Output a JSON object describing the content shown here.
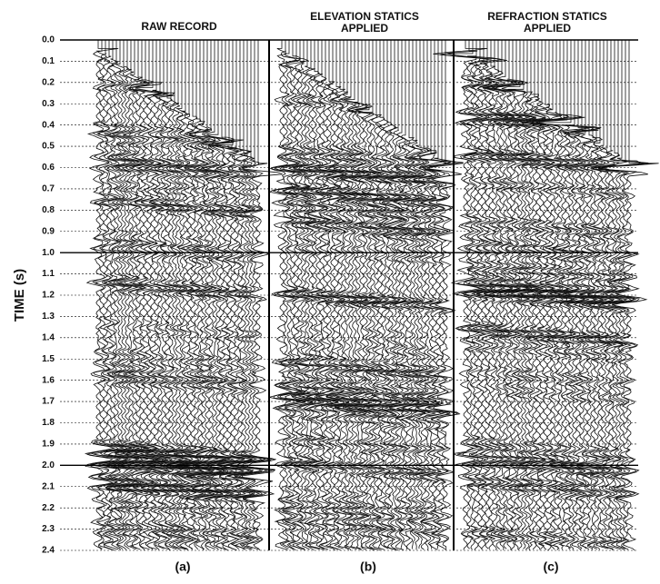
{
  "figure": {
    "ylabel": "TIME  (s)",
    "ylim": [
      0,
      2.4
    ],
    "yticks": [
      {
        "value": 0,
        "label": "0.0"
      },
      0.1,
      0.2,
      0.3,
      0.4,
      0.5,
      0.6,
      0.7,
      0.8,
      0.9,
      {
        "value": 1,
        "label": "1.0"
      },
      1.1,
      1.2,
      1.3,
      1.4,
      1.5,
      1.6,
      1.7,
      1.8,
      1.9,
      {
        "value": 2,
        "label": "2.0"
      },
      2.1,
      2.2,
      2.3,
      2.4
    ],
    "panels": [
      {
        "title_lines": [
          "RAW RECORD"
        ],
        "label": "(a)"
      },
      {
        "title_lines": [
          "ELEVATION STATICS",
          "APPLIED"
        ],
        "label": "(b)"
      },
      {
        "title_lines": [
          "REFRACTION STATICS",
          "APPLIED"
        ],
        "label": "(c)"
      }
    ]
  }
}
